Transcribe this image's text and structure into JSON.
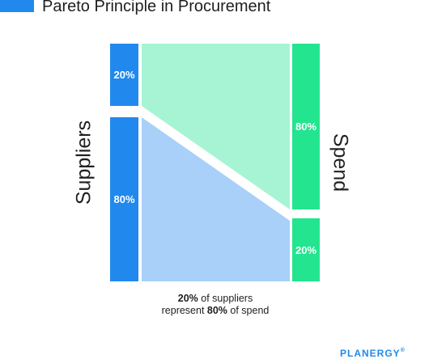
{
  "title": "Pareto Principle in Procurement",
  "left_axis_label": "Suppliers",
  "right_axis_label": "Spend",
  "suppliers": {
    "top_percent": "20%",
    "bottom_percent": "80%"
  },
  "spend": {
    "top_percent": "80%",
    "bottom_percent": "20%"
  },
  "caption": {
    "line1_value": "20%",
    "line1_text": " of suppliers",
    "line2_text": "represent ",
    "line2_value": "80%",
    "line2_suffix": " of spend"
  },
  "brand": "PLANERGY",
  "brand_mark": "®",
  "colors": {
    "blue": "#2189ee",
    "green": "#23e58f",
    "light_green": "#a6f4d3",
    "light_blue": "#a8d0f8"
  }
}
